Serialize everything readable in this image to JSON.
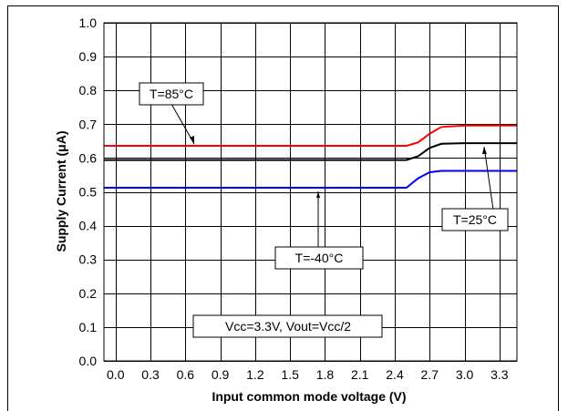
{
  "chart_data": {
    "type": "line",
    "title": "",
    "xlabel": "Input common mode voltage (V)",
    "ylabel": "Supply Current (μA)",
    "xlim": [
      -0.1,
      3.45
    ],
    "ylim": [
      0.0,
      1.0
    ],
    "x_ticks": [
      "0.0",
      "0.3",
      "0.6",
      "0.9",
      "1.2",
      "1.5",
      "1.8",
      "2.1",
      "2.4",
      "2.7",
      "3.0",
      "3.3"
    ],
    "y_ticks": [
      "0.0",
      "0.1",
      "0.2",
      "0.3",
      "0.4",
      "0.5",
      "0.6",
      "0.7",
      "0.8",
      "0.9",
      "1.0"
    ],
    "grid": true,
    "series": [
      {
        "name": "T=85°C",
        "color": "#ff0000",
        "x": [
          -0.1,
          2.4,
          2.5,
          2.6,
          2.7,
          2.8,
          3.0,
          3.45
        ],
        "y": [
          0.636,
          0.636,
          0.636,
          0.646,
          0.672,
          0.692,
          0.696,
          0.696
        ]
      },
      {
        "name": "T=25°C",
        "color": "#000000",
        "x": [
          -0.1,
          2.4,
          2.5,
          2.6,
          2.7,
          2.8,
          3.0,
          3.45
        ],
        "y": [
          0.594,
          0.594,
          0.594,
          0.605,
          0.63,
          0.642,
          0.644,
          0.644
        ]
      },
      {
        "name": "T=-40°C",
        "color": "#0000ff",
        "x": [
          -0.1,
          2.4,
          2.5,
          2.6,
          2.7,
          2.8,
          3.0,
          3.45
        ],
        "y": [
          0.512,
          0.512,
          0.512,
          0.54,
          0.558,
          0.562,
          0.562,
          0.562
        ]
      }
    ],
    "annotations": [
      {
        "text": "T=85°C",
        "target": [
          0.7,
          0.636
        ]
      },
      {
        "text": "T=25°C",
        "target": [
          3.0,
          0.644
        ]
      },
      {
        "text": "T=-40°C",
        "target": [
          1.6,
          0.512
        ]
      },
      {
        "text": "Vcc=3.3V, Vout=Vcc/2"
      }
    ]
  }
}
